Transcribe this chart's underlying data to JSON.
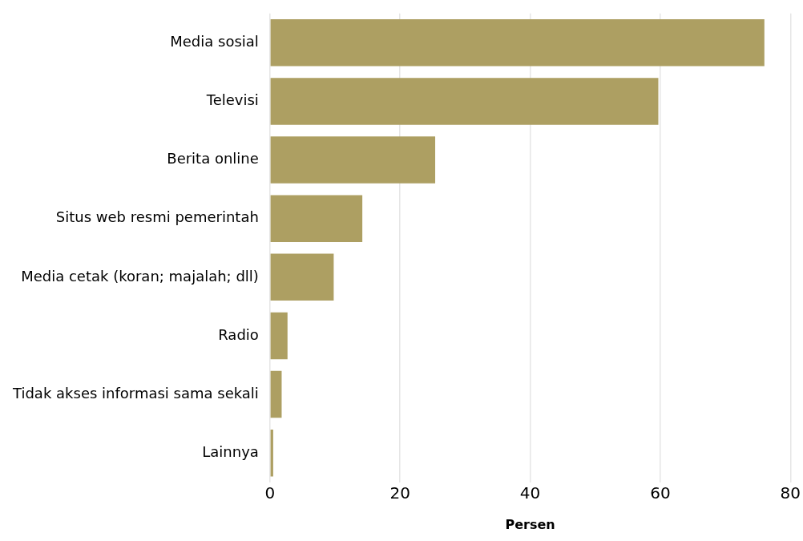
{
  "chart_data": {
    "type": "bar",
    "orientation": "horizontal",
    "xlabel": "Persen",
    "categories": [
      "Media sosial",
      "Televisi",
      "Berita online",
      "Situs web resmi pemerintah",
      "Media cetak (koran; majalah; dll)",
      "Radio",
      "Tidak akses informasi sama sekali",
      "Lainnya"
    ],
    "values": [
      76.0,
      59.7,
      25.4,
      14.2,
      9.8,
      2.7,
      1.8,
      0.5
    ],
    "color": "#ad9f62",
    "xlim": [
      0,
      80
    ],
    "xticks": [
      0,
      20,
      40,
      60,
      80
    ],
    "grid": "x",
    "legend": false
  }
}
